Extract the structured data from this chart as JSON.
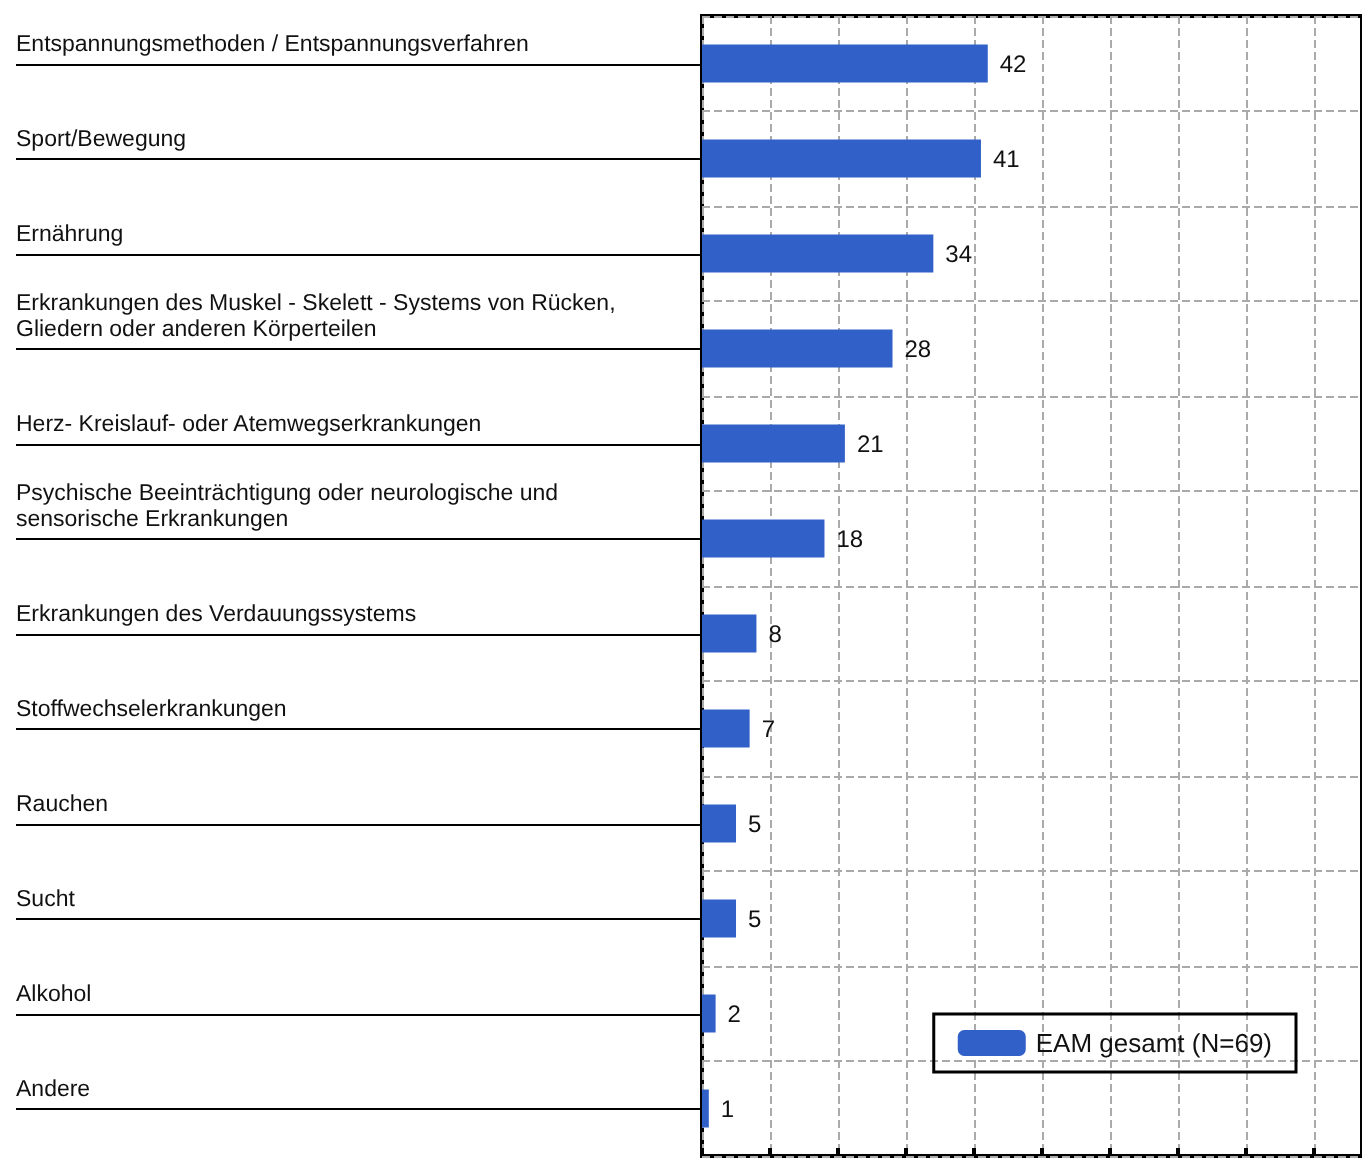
{
  "chart_data": {
    "type": "bar",
    "orientation": "horizontal",
    "categories": [
      "Entspannungsmethoden / Entspannungsverfahren",
      "Sport/Bewegung",
      "Ernährung",
      "Erkrankungen des Muskel - Skelett - Systems von Rücken, Gliedern oder anderen Körperteilen",
      "Herz- Kreislauf- oder Atemwegserkrankungen",
      "Psychische Beeinträchtigung oder neurologische und sensorische Erkrankungen",
      "Erkrankungen des Verdauungssystems",
      "Stoffwechselerkrankungen",
      "Rauchen",
      "Sucht",
      "Alkohol",
      "Andere"
    ],
    "series": [
      {
        "name": "EAM gesamt (N=69)",
        "color": "#3160c9",
        "values": [
          42,
          41,
          34,
          28,
          21,
          18,
          8,
          7,
          5,
          5,
          2,
          1
        ]
      }
    ],
    "xlim": [
      0,
      97
    ],
    "xticks": [
      0,
      10,
      20,
      30,
      40,
      50,
      60,
      70,
      80,
      90
    ],
    "tick_labels": "y",
    "grid": true,
    "data_labels": true,
    "legend": "bottom right"
  }
}
